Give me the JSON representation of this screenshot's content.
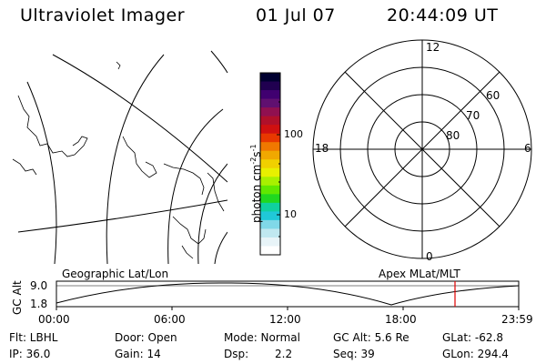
{
  "header": {
    "app_title": "Ultraviolet Imager",
    "date": "01 Jul 07",
    "time": "20:44:09 UT"
  },
  "geo_map": {
    "label": "Geographic Lat/Lon"
  },
  "colorbar": {
    "unit_label": "photon cm",
    "unit_sup1": "-2",
    "unit_mid": "s",
    "unit_sup2": "-1",
    "tick_100": "100",
    "tick_10": "10",
    "colors": [
      "#000030",
      "#200050",
      "#400070",
      "#601070",
      "#901050",
      "#b0102a",
      "#d01010",
      "#e83800",
      "#f07800",
      "#f0a800",
      "#f0d000",
      "#e8f000",
      "#a8f000",
      "#60e800",
      "#20d820",
      "#10d0a0",
      "#20c8d8",
      "#80d8e8",
      "#c0e8f0",
      "#e8f4f8",
      "#ffffff"
    ]
  },
  "polar": {
    "label": "Apex MLat/MLT",
    "mlt_12": "12",
    "mlt_18": "18",
    "mlt_6": "6",
    "mlt_0": "0",
    "lat_60": "60",
    "lat_70": "70",
    "lat_80": "80"
  },
  "altitude_plot": {
    "axis_label": "GC Alt",
    "y_max": "9.0",
    "y_min": "1.8",
    "x_ticks": [
      "00:00",
      "06:00",
      "12:00",
      "18:00",
      "23:59"
    ],
    "marker_color": "#e00000"
  },
  "status": {
    "flt": "Flt: LBHL",
    "ip": "IP: 36.0",
    "door": "Door: Open",
    "gain": "Gain: 14",
    "mode": "Mode: Normal",
    "dsp_label": "Dsp:",
    "dsp_value": "2.2",
    "gc_alt": "GC Alt: 5.6 Re",
    "seq": "Seq: 39",
    "glat": "GLat: -62.8",
    "glon": "GLon: 294.4"
  }
}
